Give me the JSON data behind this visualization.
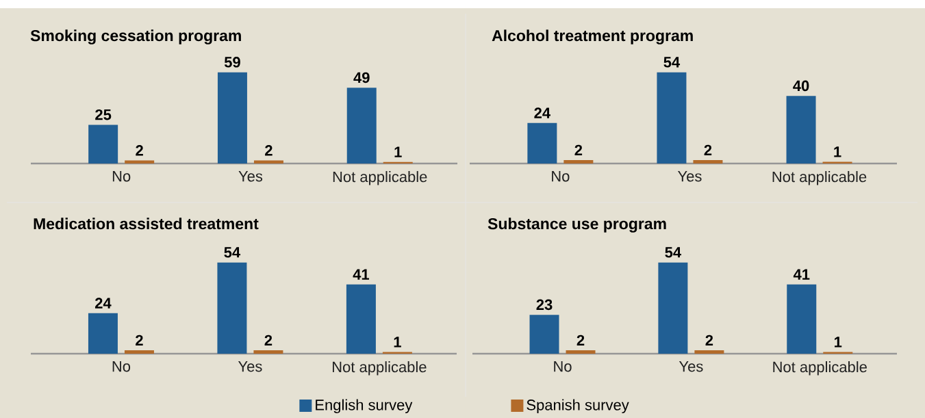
{
  "chart_data": [
    {
      "type": "bar",
      "title": "Smoking cessation program",
      "categories": [
        "No",
        "Yes",
        "Not applicable"
      ],
      "series": [
        {
          "color": "#215f94",
          "values": [
            25,
            59,
            49
          ]
        },
        {
          "color": "#b36b2a",
          "values": [
            2,
            2,
            1
          ]
        }
      ],
      "data_labels": true
    },
    {
      "type": "bar",
      "title": "Alcohol treatment program",
      "categories": [
        "No",
        "Yes",
        "Not applicable"
      ],
      "series": [
        {
          "color": "#215f94",
          "values": [
            24,
            54,
            40
          ]
        },
        {
          "color": "#b36b2a",
          "values": [
            2,
            2,
            1
          ]
        }
      ],
      "data_labels": true
    },
    {
      "type": "bar",
      "title": "Medication assisted treatment",
      "categories": [
        "No",
        "Yes",
        "Not applicable"
      ],
      "series": [
        {
          "color": "#215f94",
          "values": [
            24,
            54,
            41
          ]
        },
        {
          "color": "#b36b2a",
          "values": [
            2,
            2,
            1
          ]
        }
      ],
      "data_labels": true
    },
    {
      "type": "bar",
      "title": "Substance use program",
      "categories": [
        "No",
        "Yes",
        "Not applicable"
      ],
      "series": [
        {
          "name": "English survey",
          "color": "#215f94",
          "values": [
            23,
            54,
            41
          ]
        },
        {
          "name": "Spanish survey",
          "color": "#b36b2a",
          "values": [
            2,
            2,
            1
          ]
        }
      ],
      "data_labels": true,
      "legend": "bottom"
    }
  ]
}
